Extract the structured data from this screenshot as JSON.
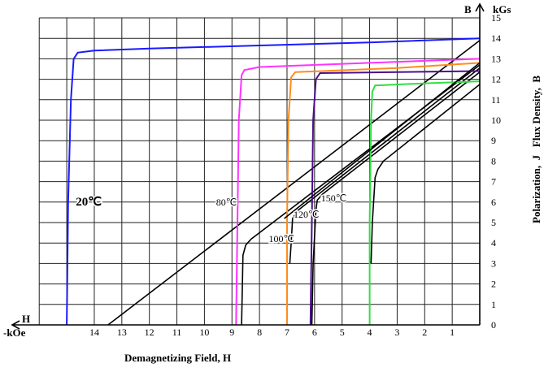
{
  "chart_data": {
    "type": "line",
    "xlabel": "Demagnetizing Field, H",
    "ylabel": "Polarization,  J   Flux Density,  B",
    "x_axis_symbol": "H",
    "x_unit": "-kOe",
    "y_axis_symbol": "B",
    "y_unit": "kGs",
    "xlim": [
      16,
      0
    ],
    "ylim": [
      0,
      15
    ],
    "x_reversed": true,
    "grid": true,
    "x_ticks": [
      "14",
      "13",
      "12",
      "11",
      "10",
      "9",
      "8",
      "7",
      "6",
      "5",
      "4",
      "3",
      "2",
      "1"
    ],
    "y_ticks": [
      "0",
      "1",
      "2",
      "3",
      "4",
      "5",
      "6",
      "7",
      "8",
      "9",
      "10",
      "11",
      "12",
      "13",
      "14",
      "15"
    ],
    "series": [
      {
        "name": "20℃",
        "kind": "J",
        "color": "#1a1aff",
        "points": [
          [
            0,
            14.0
          ],
          [
            4,
            13.8
          ],
          [
            8,
            13.65
          ],
          [
            12,
            13.5
          ],
          [
            14,
            13.4
          ],
          [
            14.6,
            13.3
          ],
          [
            14.75,
            13.0
          ],
          [
            14.85,
            11
          ],
          [
            14.95,
            6
          ],
          [
            15.0,
            0
          ]
        ]
      },
      {
        "name": "20℃",
        "kind": "B",
        "color": "#000000",
        "points": [
          [
            0,
            13.9
          ],
          [
            13.5,
            0
          ]
        ]
      },
      {
        "name": "80℃",
        "kind": "J",
        "color": "#ff33ff",
        "points": [
          [
            0,
            13.0
          ],
          [
            4,
            12.8
          ],
          [
            8,
            12.6
          ],
          [
            8.55,
            12.45
          ],
          [
            8.65,
            12.2
          ],
          [
            8.75,
            10
          ],
          [
            8.8,
            5
          ],
          [
            8.85,
            0
          ]
        ]
      },
      {
        "name": "80℃",
        "kind": "B",
        "color": "#000000",
        "points": [
          [
            0,
            12.7
          ],
          [
            8.3,
            4.2
          ],
          [
            8.5,
            3.9
          ],
          [
            8.6,
            3.4
          ],
          [
            8.65,
            0
          ]
        ]
      },
      {
        "name": "100℃",
        "kind": "J",
        "color": "#ff8c1a",
        "points": [
          [
            0,
            12.8
          ],
          [
            3,
            12.55
          ],
          [
            6.7,
            12.35
          ],
          [
            6.85,
            12.1
          ],
          [
            6.95,
            10
          ],
          [
            7.0,
            5
          ],
          [
            7.0,
            0
          ]
        ]
      },
      {
        "name": "100℃",
        "kind": "B",
        "color": "#000000",
        "points": [
          [
            0,
            12.55
          ],
          [
            6.6,
            5.6
          ],
          [
            6.8,
            5.2
          ],
          [
            6.85,
            4.0
          ],
          [
            6.9,
            3.0
          ]
        ]
      },
      {
        "name": "120℃",
        "kind": "J",
        "color": "#4b0f8c",
        "points": [
          [
            0,
            12.4
          ],
          [
            3,
            12.35
          ],
          [
            5.8,
            12.3
          ],
          [
            5.95,
            12.0
          ],
          [
            6.05,
            10
          ],
          [
            6.1,
            5
          ],
          [
            6.15,
            0
          ]
        ]
      },
      {
        "name": "120℃",
        "kind": "B",
        "color": "#000000",
        "points": [
          [
            0,
            12.35
          ],
          [
            5.7,
            6.4
          ],
          [
            5.9,
            6.1
          ],
          [
            5.95,
            5.6
          ],
          [
            6.05,
            3
          ],
          [
            6.1,
            0
          ]
        ]
      },
      {
        "name": "150℃",
        "kind": "J",
        "color": "#33dd44",
        "points": [
          [
            0,
            11.9
          ],
          [
            2,
            11.8
          ],
          [
            3.8,
            11.7
          ],
          [
            3.9,
            11.4
          ],
          [
            3.95,
            10
          ],
          [
            4.0,
            5
          ],
          [
            4.0,
            0
          ]
        ]
      },
      {
        "name": "150℃",
        "kind": "B",
        "color": "#000000",
        "points": [
          [
            0,
            11.75
          ],
          [
            3.5,
            8.0
          ],
          [
            3.7,
            7.6
          ],
          [
            3.8,
            7.2
          ],
          [
            3.9,
            5
          ],
          [
            3.95,
            3
          ]
        ]
      },
      {
        "name": "",
        "kind": "B",
        "color": "#000000",
        "points": [
          [
            0,
            12.8
          ],
          [
            7.1,
            5.2
          ]
        ]
      }
    ],
    "annotations": [
      "20℃",
      "80℃",
      "100℃",
      "120℃",
      "150℃"
    ]
  }
}
